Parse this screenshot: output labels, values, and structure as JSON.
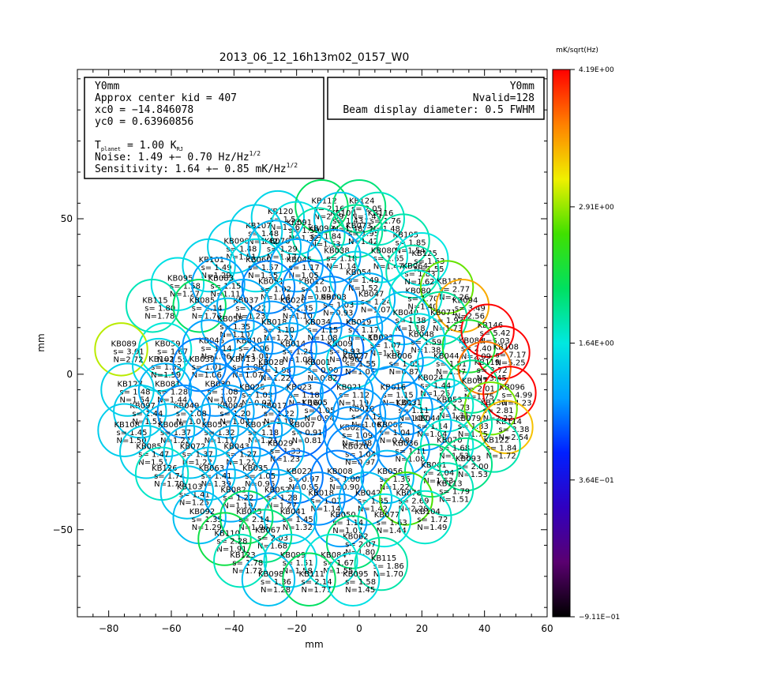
{
  "chart_data": {
    "type": "scatter",
    "title": "2013_06_12_16h13m02_0157_W0",
    "xlabel": "mm",
    "ylabel": "mm",
    "xlim": [
      -90,
      60
    ],
    "ylim": [
      -78,
      98
    ],
    "xticks": [
      "−80",
      "−60",
      "−40",
      "−20",
      "0",
      "20",
      "40",
      "60"
    ],
    "xtick_values": [
      -80,
      -60,
      -40,
      -20,
      0,
      20,
      40,
      60
    ],
    "yticks": [
      "50",
      "0",
      "−50"
    ],
    "ytick_values": [
      50,
      0,
      -50
    ],
    "info_left": {
      "line1": "Y0mm",
      "line2": "Approx center kid = 407",
      "line3": "xc0 = −14.846078",
      "line4": "yc0 = 0.63960856",
      "tplanet": "T",
      "tplanet_sub": "planet",
      "tplanet_val": " = 1.00 K",
      "tplanet_unit_sub": "RJ",
      "noise": "Noise:  1.49 +− 0.70 Hz/Hz",
      "noise_sup": "1/2",
      "sens": "Sensitivity:  1.64 +−  0.85 mK/Hz",
      "sens_sup": "1/2"
    },
    "info_right": {
      "line1": "Y0mm",
      "line2": "Nvalid=128",
      "line3": "Beam display diameter: 0.5 FWHM"
    },
    "colorbar": {
      "label": "mK/sqrt(Hz)",
      "ticks": [
        "4.19E+00",
        "2.91E+00",
        "1.64E+00",
        "3.64E−01",
        "−9.11E−01"
      ],
      "tick_values": [
        4.19,
        2.91,
        1.64,
        0.364,
        -0.911
      ],
      "min": -0.911,
      "max": 4.19
    },
    "beam_radius_mm": 5.4,
    "points": [
      {
        "name": "KB120",
        "x": -26,
        "y": 50.5,
        "s": "1.51",
        "n": "1.36"
      },
      {
        "name": "KB112",
        "x": -12,
        "y": 54,
        "s": "2.16",
        "n": "2.09"
      },
      {
        "name": "KB124",
        "x": 0,
        "y": 54,
        "s": "2.05",
        "n": "1.49"
      },
      {
        "name": "KB091",
        "x": -20,
        "y": 47,
        "s": "1.59",
        "n": "1.32"
      },
      {
        "name": "KB100",
        "x": -6,
        "y": 50,
        "s": "1.43",
        "n": "1.48"
      },
      {
        "name": "KB116",
        "x": 6,
        "y": 50,
        "s": "1.76",
        "n": "1.48"
      },
      {
        "name": "KB107",
        "x": -33,
        "y": 46,
        "s": "1.48",
        "n": "1.42"
      },
      {
        "name": "KB099",
        "x": -13,
        "y": 45,
        "s": "1.84",
        "n": "1.53"
      },
      {
        "name": "KB073",
        "x": -1,
        "y": 46,
        "s": "1.95",
        "n": "1.42"
      },
      {
        "name": "KB105",
        "x": 14,
        "y": 43,
        "s": "1.85",
        "n": "1.54"
      },
      {
        "name": "KB090",
        "x": -40,
        "y": 41,
        "s": "1.48",
        "n": "1.51"
      },
      {
        "name": "KB076",
        "x": -27,
        "y": 41,
        "s": "1.29",
        "n": "1.17"
      },
      {
        "name": "KB038",
        "x": -8,
        "y": 38,
        "s": "1.18",
        "n": "1.14"
      },
      {
        "name": "KB080",
        "x": 7,
        "y": 38,
        "s": "1.65",
        "n": "1.47"
      },
      {
        "name": "KB125",
        "x": 20,
        "y": 37,
        "s": "1.63",
        "n": "1.55"
      },
      {
        "name": "KB101",
        "x": -48,
        "y": 35,
        "s": "1.49",
        "n": "1.29"
      },
      {
        "name": "KB060",
        "x": -33,
        "y": 35,
        "s": "1.57",
        "n": "1.35"
      },
      {
        "name": "KB045",
        "x": -20,
        "y": 35,
        "s": "1.17",
        "n": "1.05"
      },
      {
        "name": "KB054",
        "x": -1,
        "y": 31,
        "s": "1.49",
        "n": "1.52"
      },
      {
        "name": "KB064",
        "x": 17,
        "y": 33,
        "s": "1.83",
        "n": "1.62"
      },
      {
        "name": "KB117",
        "x": 28,
        "y": 28,
        "s": "2.77",
        "n": "2.26"
      },
      {
        "name": "KB095",
        "x": -58,
        "y": 29,
        "s": "1.58",
        "n": "1.27"
      },
      {
        "name": "KB083",
        "x": -45,
        "y": 29,
        "s": "1.15",
        "n": "1.11"
      },
      {
        "name": "KB051",
        "x": -29,
        "y": 28,
        "s": "1.02",
        "n": "1.04"
      },
      {
        "name": "KB012",
        "x": -16,
        "y": 28,
        "s": "1.01",
        "n": "0.99"
      },
      {
        "name": "KB047",
        "x": 3,
        "y": 24,
        "s": "1.24",
        "n": "1.07"
      },
      {
        "name": "KB080b",
        "x": 18,
        "y": 25,
        "s": "1.70",
        "n": "1.40"
      },
      {
        "name": "KB094",
        "x": 33,
        "y": 22,
        "s": "3.49",
        "n": "2.56"
      },
      {
        "name": "KB115",
        "x": -66,
        "y": 22,
        "s": "1.80",
        "n": "1.78"
      },
      {
        "name": "KB085",
        "x": -51,
        "y": 22,
        "s": "2.14",
        "n": "1.76"
      },
      {
        "name": "KB037",
        "x": -37,
        "y": 22,
        "s": "1.22",
        "n": "1.23"
      },
      {
        "name": "KB026",
        "x": -22,
        "y": 22,
        "s": "1.35",
        "n": "1.10"
      },
      {
        "name": "KB003",
        "x": -9,
        "y": 23,
        "s": "1.03",
        "n": "0.93"
      },
      {
        "name": "KB019",
        "x": -1,
        "y": 15,
        "s": "1.17",
        "n": "1.10"
      },
      {
        "name": "KB040",
        "x": 14,
        "y": 18,
        "s": "1.38",
        "n": "1.18"
      },
      {
        "name": "KB071",
        "x": 26,
        "y": 18,
        "s": "1.93",
        "n": "1.73"
      },
      {
        "name": "KB146",
        "x": 41,
        "y": 14,
        "s": "5.42",
        "n": "5.03"
      },
      {
        "name": "KB058",
        "x": -42,
        "y": 16,
        "s": "1.35",
        "n": "1.10"
      },
      {
        "name": "KB018",
        "x": -28,
        "y": 15,
        "s": "1.10",
        "n": "1.22"
      },
      {
        "name": "KB034",
        "x": -14,
        "y": 15,
        "s": "1.15",
        "n": "1.08"
      },
      {
        "name": "KB033",
        "x": 6,
        "y": 10,
        "s": "1.07",
        "n": "1.13"
      },
      {
        "name": "KB048",
        "x": 19,
        "y": 11,
        "s": "1.59",
        "n": "1.38"
      },
      {
        "name": "KB088",
        "x": 35,
        "y": 9,
        "s": "2.40",
        "n": "2.09"
      },
      {
        "name": "KB108",
        "x": 46,
        "y": 7,
        "s": "7.17",
        "n": "5.25"
      },
      {
        "name": "KB059",
        "x": -62,
        "y": 8,
        "s": "1.67",
        "n": "1.55"
      },
      {
        "name": "KB046",
        "x": -48,
        "y": 9,
        "s": "1.14",
        "n": "1.06"
      },
      {
        "name": "KB010",
        "x": -36,
        "y": 9,
        "s": "1.06",
        "n": "1.04"
      },
      {
        "name": "KB014",
        "x": -22,
        "y": 8,
        "s": "1.24",
        "n": "1.08"
      },
      {
        "name": "KB009",
        "x": -7,
        "y": 8,
        "s": "0.93",
        "n": "0.90"
      },
      {
        "name": "KB089",
        "x": -76,
        "y": 8,
        "s": "3.01",
        "n": "2.72"
      },
      {
        "name": "KB027",
        "x": -2,
        "y": 4,
        "s": "1.55",
        "n": "1.05"
      },
      {
        "name": "KB006",
        "x": 12,
        "y": 4,
        "s": "1.05",
        "n": "0.87"
      },
      {
        "name": "KB044",
        "x": 27,
        "y": 4,
        "s": "1.51",
        "n": "1.37"
      },
      {
        "name": "KB119",
        "x": 40,
        "y": 2,
        "s": "3.72",
        "n": "3.45"
      },
      {
        "name": "KB102",
        "x": -64,
        "y": 3,
        "s": "1.52",
        "n": "1.59"
      },
      {
        "name": "KB039",
        "x": -51,
        "y": 3,
        "s": "1.01",
        "n": "1.06"
      },
      {
        "name": "KB013",
        "x": -38,
        "y": 3,
        "s": "1.06",
        "n": "1.07"
      },
      {
        "name": "KB028",
        "x": -29,
        "y": 2,
        "s": "1.08",
        "n": "1.22"
      },
      {
        "name": "KB001",
        "x": -14,
        "y": 2,
        "s": "0.90",
        "n": "0.82"
      },
      {
        "name": "KB024",
        "x": 22,
        "y": -3,
        "s": "1.44",
        "n": "1.25"
      },
      {
        "name": "KB087",
        "x": 36,
        "y": -4,
        "s": "2.01",
        "n": "1.75"
      },
      {
        "name": "KB096",
        "x": 48,
        "y": -6,
        "s": "4.99",
        "n": "4.23"
      },
      {
        "name": "KB127",
        "x": -74,
        "y": -5,
        "s": "1.48",
        "n": "1.54"
      },
      {
        "name": "KB081",
        "x": -62,
        "y": -5,
        "s": "1.28",
        "n": "1.44"
      },
      {
        "name": "KB030",
        "x": -46,
        "y": -5,
        "s": "1.08",
        "n": "1.07"
      },
      {
        "name": "KB025",
        "x": -35,
        "y": -6,
        "s": "1.03",
        "n": "0.97"
      },
      {
        "name": "KB023",
        "x": -20,
        "y": -6,
        "s": "1.18",
        "n": "1.16"
      },
      {
        "name": "KB021",
        "x": -4,
        "y": -6,
        "s": "1.12",
        "n": "1.19"
      },
      {
        "name": "KB016",
        "x": 10,
        "y": -6,
        "s": "1.15",
        "n": "1.01"
      },
      {
        "name": "KB053",
        "x": 28,
        "y": -10,
        "s": "1.73",
        "n": "1.31"
      },
      {
        "name": "KB097",
        "x": -70,
        "y": -12,
        "s": "1.44",
        "n": "1.55"
      },
      {
        "name": "KB049",
        "x": -56,
        "y": -12,
        "s": "1.08",
        "n": "1.07"
      },
      {
        "name": "KB004",
        "x": -42,
        "y": -12,
        "s": "1.20",
        "n": "1.04"
      },
      {
        "name": "KB017",
        "x": -28,
        "y": -12,
        "s": "1.22",
        "n": "1.18"
      },
      {
        "name": "KB005",
        "x": -15,
        "y": -11,
        "s": "1.05",
        "n": "0.94"
      },
      {
        "name": "KB010b",
        "x": 0,
        "y": -13,
        "s": "1.12",
        "n": "1.06"
      },
      {
        "name": "KB031",
        "x": 15,
        "y": -11,
        "s": "1.11",
        "n": "1.07"
      },
      {
        "name": "KB130",
        "x": 42,
        "y": -11,
        "s": "2.81",
        "n": "2.22"
      },
      {
        "name": "KB108b",
        "x": -75,
        "y": -18,
        "s": "1.45",
        "n": "1.50"
      },
      {
        "name": "KB069",
        "x": -61,
        "y": -18,
        "s": "1.37",
        "n": "1.22"
      },
      {
        "name": "KB055",
        "x": -47,
        "y": -18,
        "s": "1.32",
        "n": "1.17"
      },
      {
        "name": "KB011",
        "x": -33,
        "y": -18,
        "s": "1.18",
        "n": "1.21"
      },
      {
        "name": "KB007",
        "x": -19,
        "y": -18,
        "s": "0.91",
        "n": "0.81"
      },
      {
        "name": "KB026b",
        "x": -3,
        "y": -19,
        "s": "1.09",
        "n": "1.08"
      },
      {
        "name": "KB002",
        "x": 9,
        "y": -18,
        "s": "1.04",
        "n": "0.98"
      },
      {
        "name": "KB044b",
        "x": 21,
        "y": -16,
        "s": "1.14",
        "n": "1.04"
      },
      {
        "name": "KB079",
        "x": 34,
        "y": -16,
        "s": "1.83",
        "n": "1.75"
      },
      {
        "name": "KB114",
        "x": 47,
        "y": -17,
        "s": "3.38",
        "n": "2.54"
      },
      {
        "name": "KB085b",
        "x": -68,
        "y": -25,
        "s": "1.47",
        "n": "1.51"
      },
      {
        "name": "KB072",
        "x": -54,
        "y": -25,
        "s": "1.37",
        "n": "1.22"
      },
      {
        "name": "KB043",
        "x": -40,
        "y": -25,
        "s": "1.27",
        "n": "1.22"
      },
      {
        "name": "KB029",
        "x": -26,
        "y": -24,
        "s": "1.33",
        "n": "1.23"
      },
      {
        "name": "KB020",
        "x": -2,
        "y": -25,
        "s": "1.04",
        "n": "0.97"
      },
      {
        "name": "KB036",
        "x": 14,
        "y": -24,
        "s": "1.11",
        "n": "1.08"
      },
      {
        "name": "KB070",
        "x": 28,
        "y": -23,
        "s": "1.68",
        "n": "1.53"
      },
      {
        "name": "KB122",
        "x": 43,
        "y": -23,
        "s": "1.84",
        "n": "1.72"
      },
      {
        "name": "KB126",
        "x": -63,
        "y": -32,
        "s": "1.74",
        "n": "1.70"
      },
      {
        "name": "KB063",
        "x": -48,
        "y": -32,
        "s": "1.41",
        "n": "1.39"
      },
      {
        "name": "KB035",
        "x": -34,
        "y": -32,
        "s": "1.05",
        "n": "0.96"
      },
      {
        "name": "KB022",
        "x": -20,
        "y": -33,
        "s": "0.97",
        "n": "0.95"
      },
      {
        "name": "KB008",
        "x": -7,
        "y": -33,
        "s": "1.00",
        "n": "0.90"
      },
      {
        "name": "KB056",
        "x": 9,
        "y": -33,
        "s": "1.36",
        "n": "1.22"
      },
      {
        "name": "KB061",
        "x": 23,
        "y": -31,
        "s": "2.04",
        "n": "1.53"
      },
      {
        "name": "KB093",
        "x": 34,
        "y": -29,
        "s": "2.00",
        "n": "1.53"
      },
      {
        "name": "KB103",
        "x": -55,
        "y": -38,
        "s": "1.41",
        "n": "1.25"
      },
      {
        "name": "KB082",
        "x": -41,
        "y": -39,
        "s": "1.22",
        "n": "1.19"
      },
      {
        "name": "KB052",
        "x": -27,
        "y": -39,
        "s": "1.28",
        "n": "1.27"
      },
      {
        "name": "KB018b",
        "x": -13,
        "y": -40,
        "s": "1.07",
        "n": "1.14"
      },
      {
        "name": "KB042",
        "x": 2,
        "y": -40,
        "s": "1.35",
        "n": "1.42"
      },
      {
        "name": "KB078",
        "x": 15,
        "y": -40,
        "s": "2.69",
        "n": "2.28"
      },
      {
        "name": "KB113",
        "x": 28,
        "y": -37,
        "s": "1.79",
        "n": "1.51"
      },
      {
        "name": "KB092",
        "x": -51,
        "y": -46,
        "s": "1.35",
        "n": "1.29"
      },
      {
        "name": "KB075",
        "x": -36,
        "y": -46,
        "s": "2.14",
        "n": "1.96"
      },
      {
        "name": "KB041",
        "x": -22,
        "y": -46,
        "s": "1.45",
        "n": "1.32"
      },
      {
        "name": "KB050",
        "x": -6,
        "y": -47,
        "s": "1.14",
        "n": "1.07"
      },
      {
        "name": "KB077",
        "x": 8,
        "y": -47,
        "s": "1.63",
        "n": "1.44"
      },
      {
        "name": "KB104",
        "x": 21,
        "y": -46,
        "s": "1.72",
        "n": "1.49"
      },
      {
        "name": "KB067",
        "x": -30,
        "y": -52,
        "s": "2.03",
        "n": "1.68"
      },
      {
        "name": "KB110",
        "x": -43,
        "y": -53,
        "s": "2.28",
        "n": "1.91"
      },
      {
        "name": "KB062",
        "x": -2,
        "y": -54,
        "s": "2.07",
        "n": "1.80"
      },
      {
        "name": "KB123",
        "x": -38,
        "y": -60,
        "s": "1.78",
        "n": "1.73"
      },
      {
        "name": "KB099b",
        "x": -22,
        "y": -60,
        "s": "1.51",
        "n": "1.58"
      },
      {
        "name": "KB084",
        "x": -9,
        "y": -60,
        "s": "1.67",
        "n": "1.55"
      },
      {
        "name": "KB115b",
        "x": 7,
        "y": -61,
        "s": "1.86",
        "n": "1.70"
      },
      {
        "name": "KB098",
        "x": -29,
        "y": -66,
        "s": "1.36",
        "n": "1.28"
      },
      {
        "name": "KB111",
        "x": -16,
        "y": -66,
        "s": "2.14",
        "n": "1.77"
      },
      {
        "name": "KB095b",
        "x": -2,
        "y": -66,
        "s": "1.58",
        "n": "1.45"
      }
    ]
  }
}
